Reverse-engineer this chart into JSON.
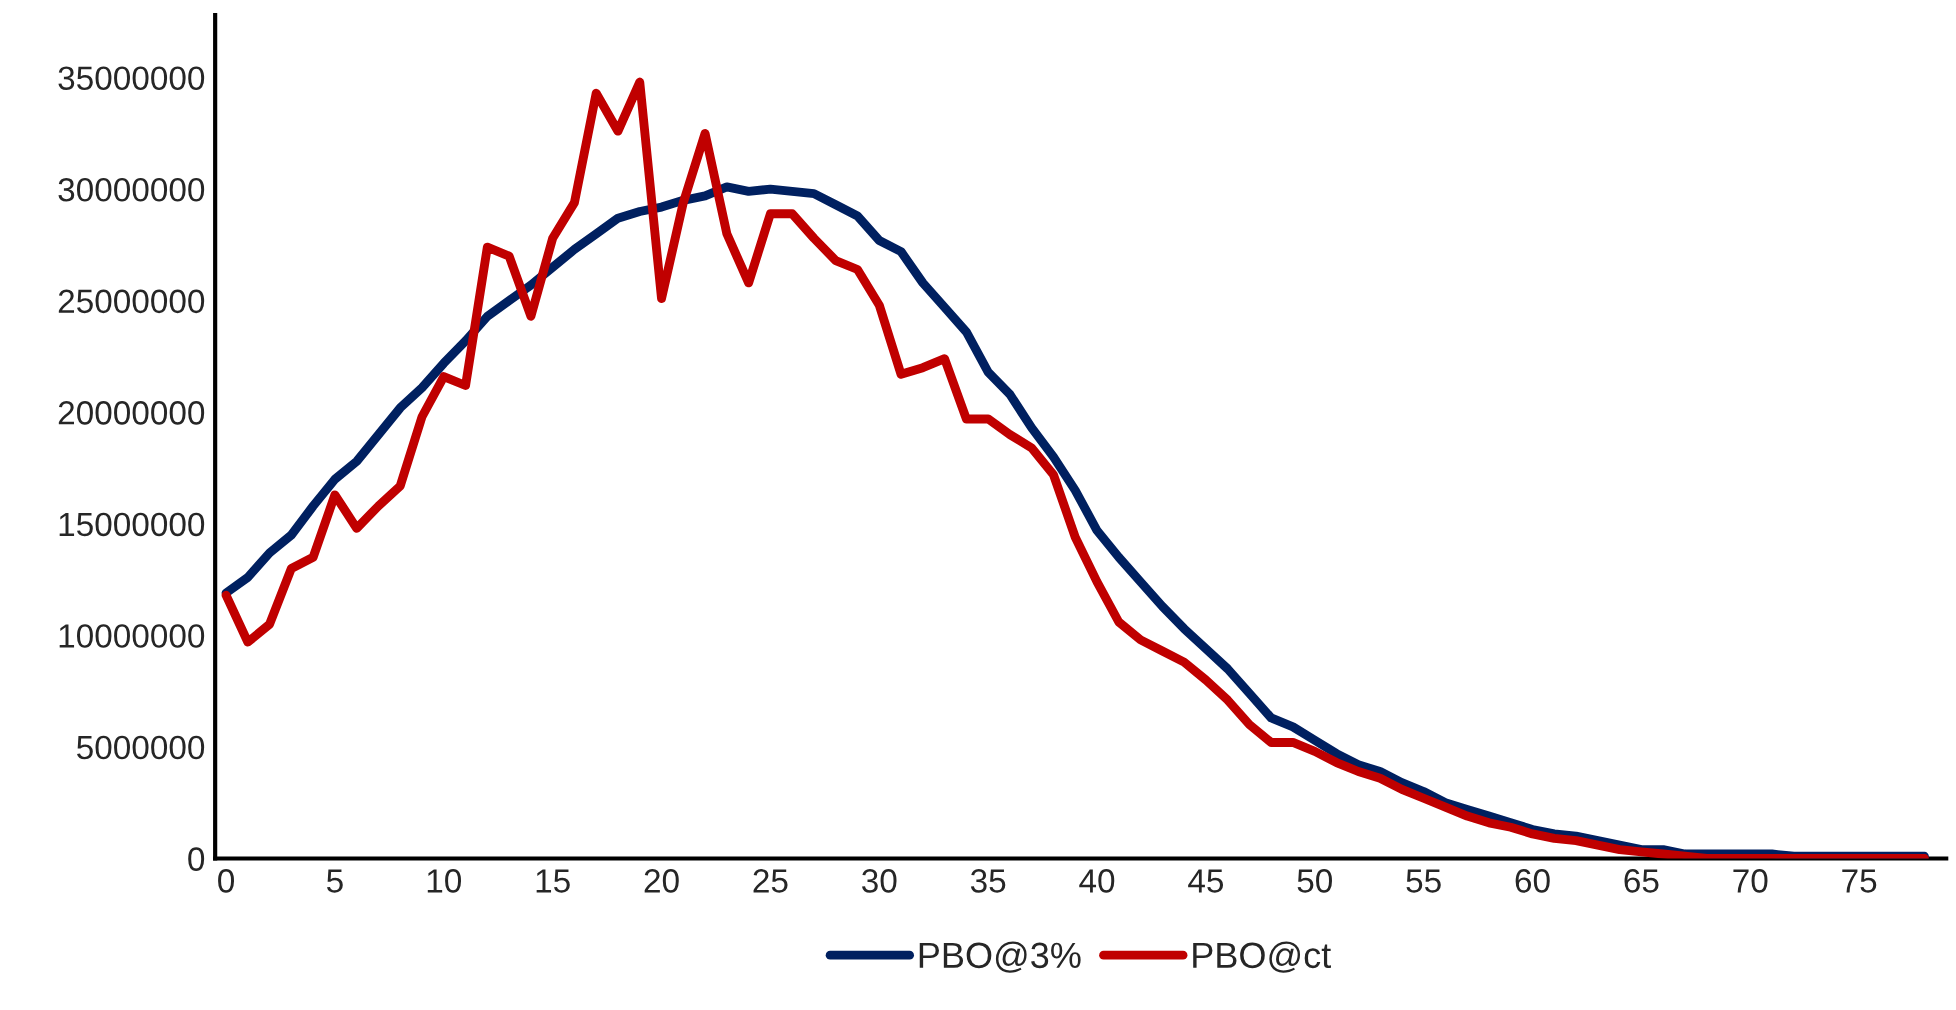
{
  "chart_data": {
    "type": "line",
    "x": [
      0,
      1,
      2,
      3,
      4,
      5,
      6,
      7,
      8,
      9,
      10,
      11,
      12,
      13,
      14,
      15,
      16,
      17,
      18,
      19,
      20,
      21,
      22,
      23,
      24,
      25,
      26,
      27,
      28,
      29,
      30,
      31,
      32,
      33,
      34,
      35,
      36,
      37,
      38,
      39,
      40,
      41,
      42,
      43,
      44,
      45,
      46,
      47,
      48,
      49,
      50,
      51,
      52,
      53,
      54,
      55,
      56,
      57,
      58,
      59,
      60,
      61,
      62,
      63,
      64,
      65,
      66,
      67,
      68,
      69,
      70,
      71,
      72,
      73,
      74,
      75,
      76,
      77,
      78
    ],
    "series": [
      {
        "name": "PBO@3%",
        "color": "#002060",
        "values": [
          11900000,
          12600000,
          13700000,
          14500000,
          15800000,
          17000000,
          17800000,
          19000000,
          20200000,
          21100000,
          22200000,
          23200000,
          24300000,
          25000000,
          25700000,
          26500000,
          27300000,
          28000000,
          28700000,
          29000000,
          29200000,
          29500000,
          29700000,
          30100000,
          29900000,
          30000000,
          29900000,
          29800000,
          29300000,
          28800000,
          27700000,
          27200000,
          25800000,
          24700000,
          23600000,
          21800000,
          20800000,
          19300000,
          18000000,
          16500000,
          14700000,
          13500000,
          12400000,
          11300000,
          10300000,
          9400000,
          8500000,
          7400000,
          6300000,
          5900000,
          5300000,
          4700000,
          4200000,
          3900000,
          3400000,
          3000000,
          2500000,
          2200000,
          1900000,
          1600000,
          1300000,
          1100000,
          1000000,
          800000,
          600000,
          400000,
          400000,
          200000,
          200000,
          200000,
          200000,
          200000,
          100000,
          100000,
          100000,
          100000,
          100000,
          100000,
          100000
        ]
      },
      {
        "name": "PBO@ct",
        "color": "#c00000",
        "values": [
          11800000,
          9700000,
          10500000,
          13000000,
          13500000,
          16300000,
          14800000,
          15800000,
          16700000,
          19800000,
          21600000,
          21200000,
          27400000,
          27000000,
          24300000,
          27800000,
          29400000,
          34300000,
          32600000,
          34800000,
          25100000,
          29400000,
          32500000,
          28000000,
          25800000,
          28900000,
          28900000,
          27800000,
          26800000,
          26400000,
          24800000,
          21700000,
          22000000,
          22400000,
          19700000,
          19700000,
          19000000,
          18400000,
          17200000,
          14400000,
          12400000,
          10600000,
          9800000,
          9300000,
          8800000,
          8000000,
          7100000,
          6000000,
          5200000,
          5200000,
          4800000,
          4300000,
          3900000,
          3600000,
          3100000,
          2700000,
          2300000,
          1900000,
          1600000,
          1400000,
          1100000,
          900000,
          800000,
          600000,
          400000,
          300000,
          200000,
          100000,
          0,
          0,
          0,
          0,
          0,
          0,
          0,
          0,
          0,
          0,
          0
        ]
      }
    ],
    "xlim": [
      -0.5,
      79
    ],
    "xticks": [
      0,
      5,
      10,
      15,
      20,
      25,
      30,
      35,
      40,
      45,
      50,
      55,
      60,
      65,
      70,
      75
    ],
    "ylim": [
      0,
      37800000
    ],
    "yticks": [
      0,
      5000000,
      10000000,
      15000000,
      20000000,
      25000000,
      30000000,
      35000000
    ],
    "grid": false,
    "legend": "bottom",
    "marker": "none",
    "line_style": "solid"
  }
}
